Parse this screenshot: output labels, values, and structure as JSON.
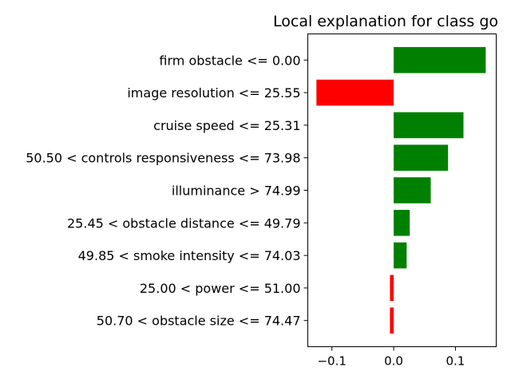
{
  "chart_data": {
    "type": "bar",
    "orientation": "horizontal",
    "title": "Local explanation for class go",
    "xlabel": "",
    "ylabel": "",
    "categories": [
      "firm obstacle <= 0.00",
      "image resolution <= 25.55",
      "cruise speed <= 25.31",
      "50.50 < controls responsiveness <= 73.98",
      "illuminance > 74.99",
      "25.45 < obstacle distance <= 49.79",
      "49.85 < smoke intensity <= 74.03",
      "25.00 < power <= 51.00",
      "50.70 < obstacle size <= 74.47"
    ],
    "values": [
      0.149,
      -0.125,
      0.113,
      0.088,
      0.06,
      0.026,
      0.021,
      -0.006,
      -0.006
    ],
    "xlim": [
      -0.139,
      0.166
    ],
    "xticks": [
      -0.1,
      0.0,
      0.1
    ],
    "xtick_labels": [
      "−0.1",
      "0.0",
      "0.1"
    ],
    "grid": false,
    "positive_color": "#008000",
    "negative_color": "#ff0000"
  }
}
